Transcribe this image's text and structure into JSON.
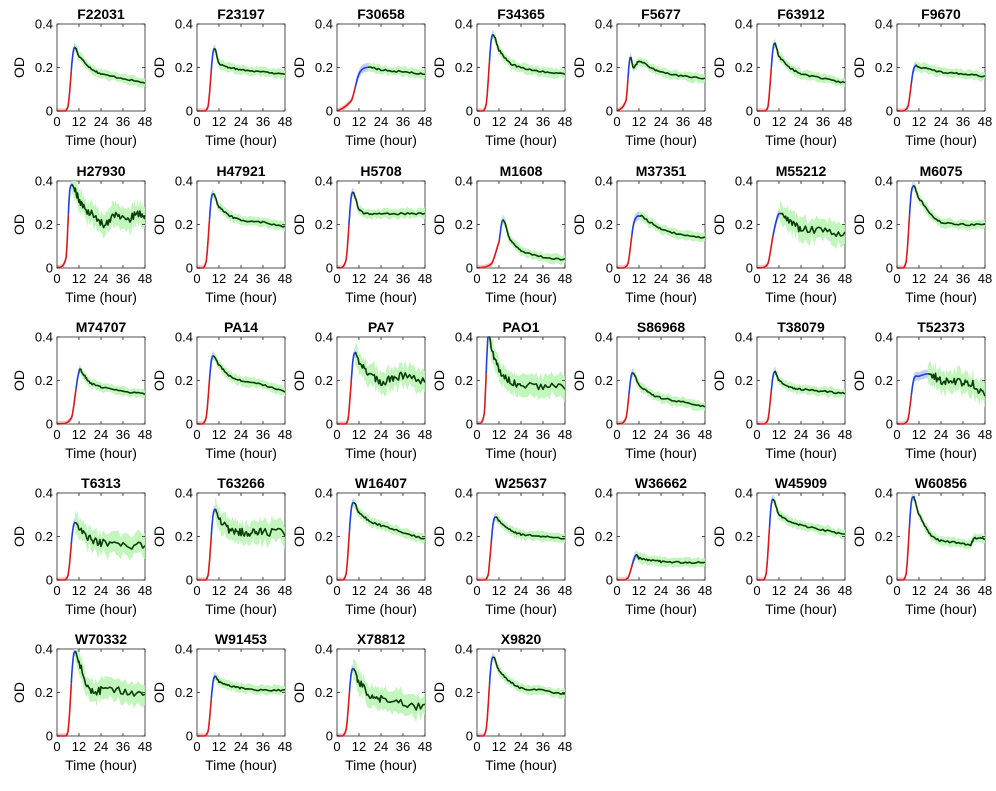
{
  "figure": {
    "x_axis_label": "Time (hour)",
    "y_axis_label": "OD",
    "x_ticks": [
      "0",
      "12",
      "24",
      "36",
      "48"
    ],
    "y_ticks": [
      "0",
      "0.2",
      "0.4"
    ],
    "colors": {
      "lag_phase": "#d7191c",
      "exp_phase": "#1f3fdc",
      "stationary": "#0a3d0a",
      "band_lag": "#f4b6b6",
      "band_exp": "#b9c6f5",
      "band_stationary": "#b8f5b0"
    }
  },
  "chart_data": [
    {
      "type": "line",
      "title": "F22031",
      "xlim": [
        0,
        48
      ],
      "ylim": [
        0,
        0.4
      ],
      "x": [
        0,
        6,
        9,
        12,
        18,
        24,
        36,
        48
      ],
      "y": [
        0.0,
        0.02,
        0.28,
        0.25,
        0.2,
        0.17,
        0.15,
        0.13
      ]
    },
    {
      "type": "line",
      "title": "F23197",
      "xlim": [
        0,
        48
      ],
      "ylim": [
        0,
        0.4
      ],
      "x": [
        0,
        6,
        9,
        12,
        18,
        24,
        36,
        48
      ],
      "y": [
        0.0,
        0.02,
        0.28,
        0.22,
        0.2,
        0.19,
        0.18,
        0.17
      ]
    },
    {
      "type": "line",
      "title": "F30658",
      "xlim": [
        0,
        48
      ],
      "ylim": [
        0,
        0.4
      ],
      "x": [
        0,
        8,
        12,
        16,
        24,
        36,
        48
      ],
      "y": [
        0.0,
        0.05,
        0.17,
        0.2,
        0.19,
        0.18,
        0.17
      ]
    },
    {
      "type": "line",
      "title": "F34365",
      "xlim": [
        0,
        48
      ],
      "ylim": [
        0,
        0.4
      ],
      "x": [
        0,
        5,
        8,
        12,
        18,
        24,
        36,
        48
      ],
      "y": [
        0.0,
        0.03,
        0.34,
        0.28,
        0.22,
        0.2,
        0.18,
        0.17
      ]
    },
    {
      "type": "line",
      "title": "F5677",
      "xlim": [
        0,
        48
      ],
      "ylim": [
        0,
        0.4
      ],
      "x": [
        0,
        5,
        7,
        9,
        12,
        18,
        24,
        36,
        48
      ],
      "y": [
        0.0,
        0.05,
        0.24,
        0.2,
        0.23,
        0.2,
        0.18,
        0.16,
        0.15
      ]
    },
    {
      "type": "line",
      "title": "F63912",
      "xlim": [
        0,
        48
      ],
      "ylim": [
        0,
        0.4
      ],
      "x": [
        0,
        6,
        9,
        12,
        18,
        24,
        36,
        48
      ],
      "y": [
        0.0,
        0.02,
        0.3,
        0.25,
        0.2,
        0.17,
        0.15,
        0.13
      ]
    },
    {
      "type": "line",
      "title": "F9670",
      "xlim": [
        0,
        48
      ],
      "ylim": [
        0,
        0.4
      ],
      "x": [
        0,
        6,
        9,
        12,
        24,
        36,
        48
      ],
      "y": [
        0.0,
        0.02,
        0.19,
        0.2,
        0.18,
        0.17,
        0.16
      ]
    },
    {
      "type": "line",
      "title": "H27930",
      "xlim": [
        0,
        48
      ],
      "ylim": [
        0,
        0.4
      ],
      "x": [
        0,
        5,
        7,
        10,
        14,
        20,
        26,
        32,
        38,
        44,
        48
      ],
      "y": [
        0.0,
        0.05,
        0.36,
        0.35,
        0.28,
        0.24,
        0.2,
        0.25,
        0.22,
        0.25,
        0.24
      ]
    },
    {
      "type": "line",
      "title": "H47921",
      "xlim": [
        0,
        48
      ],
      "ylim": [
        0,
        0.4
      ],
      "x": [
        0,
        5,
        8,
        12,
        18,
        24,
        36,
        48
      ],
      "y": [
        0.0,
        0.03,
        0.33,
        0.28,
        0.24,
        0.22,
        0.21,
        0.19
      ]
    },
    {
      "type": "line",
      "title": "H5708",
      "xlim": [
        0,
        48
      ],
      "ylim": [
        0,
        0.4
      ],
      "x": [
        0,
        5,
        8,
        12,
        16,
        24,
        36,
        48
      ],
      "y": [
        0.0,
        0.04,
        0.34,
        0.27,
        0.25,
        0.25,
        0.25,
        0.25
      ]
    },
    {
      "type": "line",
      "title": "M1608",
      "xlim": [
        0,
        48
      ],
      "ylim": [
        0,
        0.4
      ],
      "x": [
        0,
        8,
        12,
        14,
        18,
        24,
        36,
        48
      ],
      "y": [
        0.0,
        0.02,
        0.12,
        0.22,
        0.13,
        0.08,
        0.05,
        0.04
      ]
    },
    {
      "type": "line",
      "title": "M37351",
      "xlim": [
        0,
        48
      ],
      "ylim": [
        0,
        0.4
      ],
      "x": [
        0,
        6,
        9,
        12,
        18,
        24,
        36,
        48
      ],
      "y": [
        0.0,
        0.02,
        0.2,
        0.24,
        0.21,
        0.18,
        0.15,
        0.14
      ]
    },
    {
      "type": "line",
      "title": "M55212",
      "xlim": [
        0,
        48
      ],
      "ylim": [
        0,
        0.4
      ],
      "x": [
        0,
        6,
        9,
        12,
        18,
        24,
        36,
        48
      ],
      "y": [
        0.0,
        0.02,
        0.16,
        0.25,
        0.21,
        0.18,
        0.17,
        0.15
      ]
    },
    {
      "type": "line",
      "title": "M6075",
      "xlim": [
        0,
        48
      ],
      "ylim": [
        0,
        0.4
      ],
      "x": [
        0,
        5,
        8,
        12,
        18,
        24,
        36,
        48
      ],
      "y": [
        0.0,
        0.03,
        0.36,
        0.32,
        0.25,
        0.21,
        0.2,
        0.2
      ]
    },
    {
      "type": "line",
      "title": "M74707",
      "xlim": [
        0,
        48
      ],
      "ylim": [
        0,
        0.4
      ],
      "x": [
        0,
        8,
        12,
        14,
        18,
        24,
        36,
        48
      ],
      "y": [
        0.0,
        0.03,
        0.24,
        0.23,
        0.19,
        0.17,
        0.15,
        0.14
      ]
    },
    {
      "type": "line",
      "title": "PA14",
      "xlim": [
        0,
        48
      ],
      "ylim": [
        0,
        0.4
      ],
      "x": [
        0,
        5,
        8,
        12,
        18,
        24,
        36,
        48
      ],
      "y": [
        0.0,
        0.03,
        0.3,
        0.27,
        0.22,
        0.2,
        0.18,
        0.15
      ]
    },
    {
      "type": "line",
      "title": "PA7",
      "xlim": [
        0,
        48
      ],
      "ylim": [
        0,
        0.4
      ],
      "x": [
        0,
        6,
        9,
        12,
        18,
        24,
        30,
        36,
        48
      ],
      "y": [
        0.0,
        0.02,
        0.31,
        0.29,
        0.23,
        0.19,
        0.21,
        0.22,
        0.2
      ]
    },
    {
      "type": "line",
      "title": "PAO1",
      "xlim": [
        0,
        48
      ],
      "ylim": [
        0,
        0.4
      ],
      "x": [
        0,
        4,
        6,
        8,
        12,
        18,
        24,
        36,
        48
      ],
      "y": [
        0.0,
        0.05,
        0.4,
        0.34,
        0.25,
        0.2,
        0.18,
        0.17,
        0.17
      ]
    },
    {
      "type": "line",
      "title": "S86968",
      "xlim": [
        0,
        48
      ],
      "ylim": [
        0,
        0.4
      ],
      "x": [
        0,
        5,
        8,
        12,
        18,
        24,
        36,
        48
      ],
      "y": [
        0.0,
        0.03,
        0.23,
        0.18,
        0.14,
        0.12,
        0.1,
        0.08
      ]
    },
    {
      "type": "line",
      "title": "T38079",
      "xlim": [
        0,
        48
      ],
      "ylim": [
        0,
        0.4
      ],
      "x": [
        0,
        6,
        9,
        12,
        18,
        24,
        36,
        48
      ],
      "y": [
        0.0,
        0.02,
        0.23,
        0.2,
        0.17,
        0.16,
        0.15,
        0.14
      ]
    },
    {
      "type": "line",
      "title": "T52373",
      "xlim": [
        0,
        48
      ],
      "ylim": [
        0,
        0.4
      ],
      "x": [
        0,
        6,
        9,
        12,
        18,
        24,
        30,
        36,
        42,
        48
      ],
      "y": [
        0.0,
        0.02,
        0.2,
        0.22,
        0.23,
        0.2,
        0.2,
        0.19,
        0.18,
        0.13
      ]
    },
    {
      "type": "line",
      "title": "T6313",
      "xlim": [
        0,
        48
      ],
      "ylim": [
        0,
        0.4
      ],
      "x": [
        0,
        6,
        9,
        12,
        18,
        24,
        36,
        48
      ],
      "y": [
        0.0,
        0.02,
        0.25,
        0.24,
        0.19,
        0.17,
        0.16,
        0.16
      ]
    },
    {
      "type": "line",
      "title": "T63266",
      "xlim": [
        0,
        48
      ],
      "ylim": [
        0,
        0.4
      ],
      "x": [
        0,
        6,
        9,
        12,
        18,
        24,
        30,
        36,
        48
      ],
      "y": [
        0.0,
        0.02,
        0.31,
        0.28,
        0.23,
        0.22,
        0.22,
        0.22,
        0.22
      ]
    },
    {
      "type": "line",
      "title": "W16407",
      "xlim": [
        0,
        48
      ],
      "ylim": [
        0,
        0.4
      ],
      "x": [
        0,
        5,
        8,
        12,
        18,
        24,
        36,
        48
      ],
      "y": [
        0.0,
        0.03,
        0.34,
        0.31,
        0.27,
        0.25,
        0.22,
        0.19
      ]
    },
    {
      "type": "line",
      "title": "W25637",
      "xlim": [
        0,
        48
      ],
      "ylim": [
        0,
        0.4
      ],
      "x": [
        0,
        6,
        9,
        12,
        18,
        24,
        36,
        48
      ],
      "y": [
        0.0,
        0.02,
        0.27,
        0.27,
        0.23,
        0.21,
        0.2,
        0.19
      ]
    },
    {
      "type": "line",
      "title": "W36662",
      "xlim": [
        0,
        48
      ],
      "ylim": [
        0,
        0.4
      ],
      "x": [
        0,
        6,
        10,
        12,
        18,
        24,
        36,
        48
      ],
      "y": [
        0.0,
        0.01,
        0.11,
        0.1,
        0.09,
        0.085,
        0.08,
        0.08
      ]
    },
    {
      "type": "line",
      "title": "W45909",
      "xlim": [
        0,
        48
      ],
      "ylim": [
        0,
        0.4
      ],
      "x": [
        0,
        5,
        8,
        12,
        18,
        24,
        36,
        48
      ],
      "y": [
        0.0,
        0.03,
        0.36,
        0.3,
        0.27,
        0.25,
        0.23,
        0.21
      ]
    },
    {
      "type": "line",
      "title": "W60856",
      "xlim": [
        0,
        48
      ],
      "ylim": [
        0,
        0.4
      ],
      "x": [
        0,
        5,
        8,
        12,
        18,
        24,
        36,
        40,
        42,
        48
      ],
      "y": [
        0.0,
        0.03,
        0.37,
        0.3,
        0.21,
        0.18,
        0.17,
        0.16,
        0.19,
        0.19
      ]
    },
    {
      "type": "line",
      "title": "W70332",
      "xlim": [
        0,
        48
      ],
      "ylim": [
        0,
        0.4
      ],
      "x": [
        0,
        6,
        9,
        12,
        18,
        24,
        36,
        48
      ],
      "y": [
        0.0,
        0.02,
        0.37,
        0.33,
        0.21,
        0.21,
        0.21,
        0.18
      ]
    },
    {
      "type": "line",
      "title": "W91453",
      "xlim": [
        0,
        48
      ],
      "ylim": [
        0,
        0.4
      ],
      "x": [
        0,
        6,
        9,
        12,
        18,
        24,
        36,
        48
      ],
      "y": [
        0.0,
        0.02,
        0.26,
        0.25,
        0.23,
        0.22,
        0.21,
        0.21
      ]
    },
    {
      "type": "line",
      "title": "X78812",
      "xlim": [
        0,
        48
      ],
      "ylim": [
        0,
        0.4
      ],
      "x": [
        0,
        5,
        8,
        12,
        18,
        24,
        36,
        48
      ],
      "y": [
        0.0,
        0.03,
        0.3,
        0.25,
        0.19,
        0.17,
        0.15,
        0.13
      ]
    },
    {
      "type": "line",
      "title": "X9820",
      "xlim": [
        0,
        48
      ],
      "ylim": [
        0,
        0.4
      ],
      "x": [
        0,
        5,
        8,
        12,
        18,
        24,
        36,
        48
      ],
      "y": [
        0.0,
        0.03,
        0.35,
        0.3,
        0.25,
        0.22,
        0.21,
        0.19
      ]
    }
  ]
}
